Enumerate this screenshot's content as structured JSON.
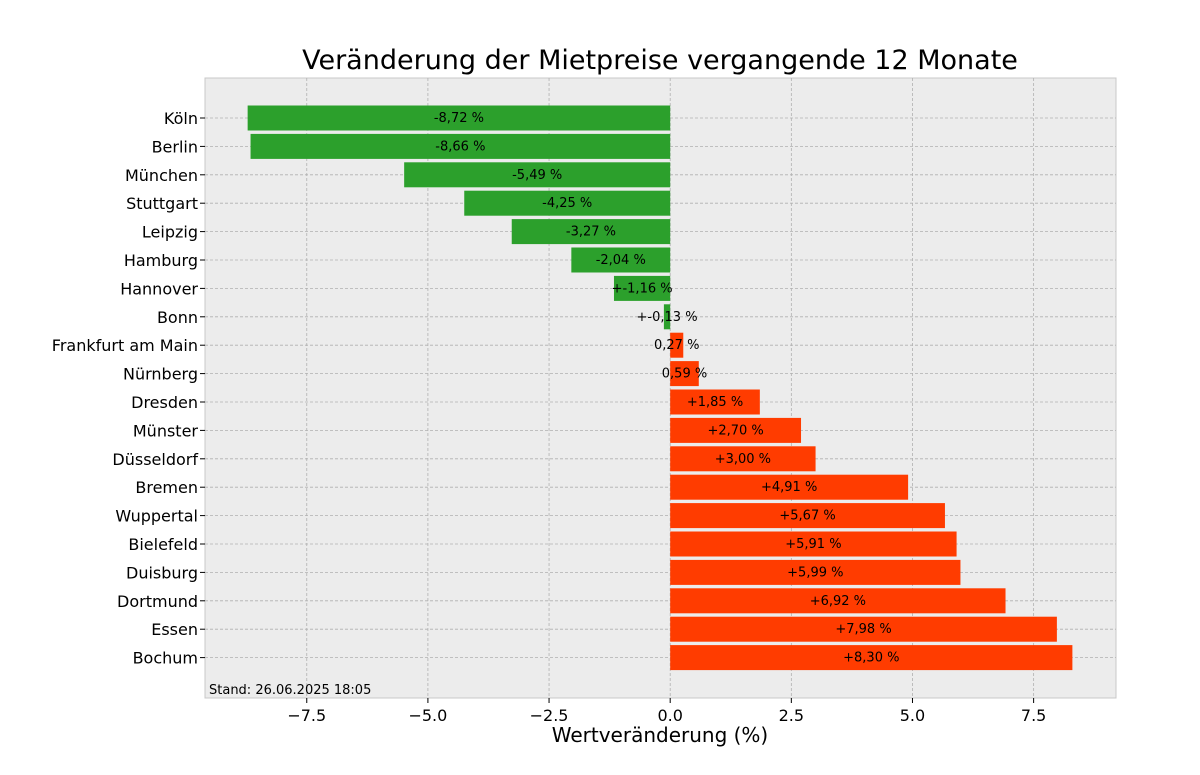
{
  "chart_data": {
    "type": "bar",
    "orientation": "horizontal",
    "title": "Veränderung der Mietpreise vergangende 12 Monate",
    "xlabel": "Wertveränderung (%)",
    "ylabel": "",
    "xlim": [
      -9.6,
      9.2
    ],
    "xticks": [
      -7.5,
      -5.0,
      -2.5,
      0.0,
      2.5,
      5.0,
      7.5
    ],
    "xtick_labels": [
      "−7.5",
      "−5.0",
      "−2.5",
      "0.0",
      "2.5",
      "5.0",
      "7.5"
    ],
    "grid": true,
    "background": "#ececec",
    "colors": {
      "negative": "#2ca02c",
      "positive": "#ff3c00"
    },
    "footnote": "Stand: 26.06.2025 18:05",
    "categories": [
      "Köln",
      "Berlin",
      "München",
      "Stuttgart",
      "Leipzig",
      "Hamburg",
      "Hannover",
      "Bonn",
      "Frankfurt am Main",
      "Nürnberg",
      "Dresden",
      "Münster",
      "Düsseldorf",
      "Bremen",
      "Wuppertal",
      "Bielefeld",
      "Duisburg",
      "Dortmund",
      "Essen",
      "Bochum"
    ],
    "values": [
      -8.72,
      -8.66,
      -5.49,
      -4.25,
      -3.27,
      -2.04,
      -1.16,
      -0.13,
      0.27,
      0.59,
      1.85,
      2.7,
      3.0,
      4.91,
      5.67,
      5.91,
      5.99,
      6.92,
      7.98,
      8.3
    ],
    "value_labels": [
      "-8,72 %",
      "-8,66 %",
      "-5,49 %",
      "-4,25 %",
      "-3,27 %",
      "-2,04 %",
      "+-1,16 %",
      "+-0,13 %",
      "0,27 %",
      "0,59 %",
      "+1,85 %",
      "+2,70 %",
      "+3,00 %",
      "+4,91 %",
      "+5,67 %",
      "+5,91 %",
      "+5,99 %",
      "+6,92 %",
      "+7,98 %",
      "+8,30 %"
    ]
  }
}
